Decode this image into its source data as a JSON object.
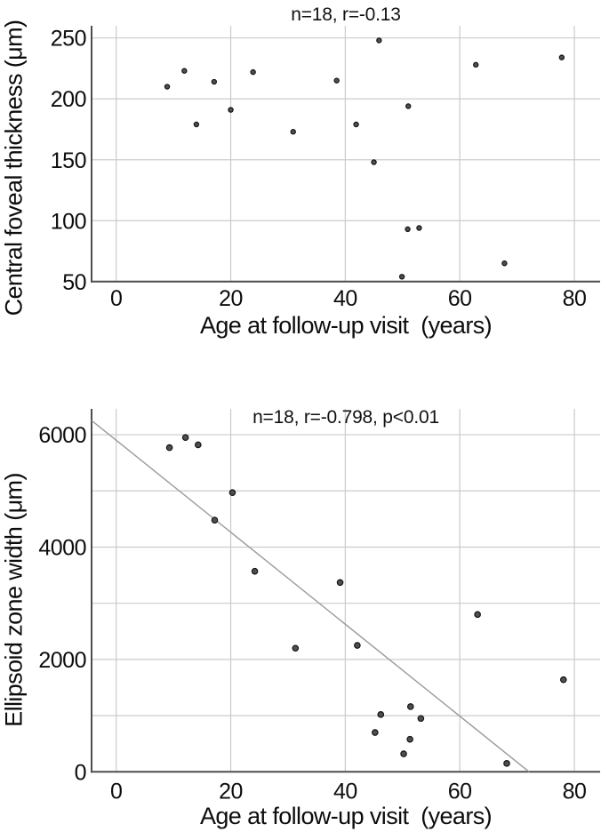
{
  "colors": {
    "background": "#ffffff",
    "grid": "#cbcbcb",
    "axis": "#4d4d4d",
    "marker_fill": "#4f4f4f",
    "marker_stroke": "#141414",
    "trend": "#9a9a9a",
    "text": "#0d0d0d"
  },
  "chart_data": [
    {
      "type": "scatter",
      "title": "n=18, r=-0.13",
      "xlabel": "Age at follow-up visit  (years)",
      "ylabel": "Central foveal thickness (μm)",
      "xlim": [
        -4.3,
        84.5
      ],
      "ylim": [
        50,
        260
      ],
      "xticks": [
        0,
        20,
        40,
        60,
        80
      ],
      "yticks": [
        50,
        100,
        150,
        200,
        250
      ],
      "ygrid": [
        100,
        150,
        200,
        250
      ],
      "grid": true,
      "legend": "none",
      "points": [
        [
          8.9,
          210
        ],
        [
          11.9,
          223
        ],
        [
          14.0,
          179
        ],
        [
          17.1,
          214
        ],
        [
          20.0,
          191
        ],
        [
          23.9,
          222
        ],
        [
          30.9,
          173
        ],
        [
          38.5,
          215
        ],
        [
          41.9,
          179
        ],
        [
          45.0,
          148
        ],
        [
          45.9,
          248
        ],
        [
          49.9,
          54
        ],
        [
          50.9,
          93
        ],
        [
          51.0,
          194
        ],
        [
          52.9,
          94
        ],
        [
          62.8,
          228
        ],
        [
          67.8,
          65
        ],
        [
          77.8,
          234
        ]
      ]
    },
    {
      "type": "scatter",
      "title": "n=18, r=-0.798, p<0.01",
      "xlabel": "Age at follow-up visit  (years)",
      "ylabel": "Ellipsoid zone width (μm)",
      "xlim": [
        -4.3,
        84.5
      ],
      "ylim": [
        0,
        6460
      ],
      "xticks": [
        0,
        20,
        40,
        60,
        80
      ],
      "yticks": [
        0,
        2000,
        4000,
        6000
      ],
      "ygrid": [
        1000,
        2000,
        3000,
        4000,
        5000,
        6000
      ],
      "grid": true,
      "legend": "none",
      "points": [
        [
          9.3,
          5770
        ],
        [
          12.1,
          5950
        ],
        [
          14.3,
          5820
        ],
        [
          17.2,
          4480
        ],
        [
          20.3,
          4970
        ],
        [
          24.2,
          3570
        ],
        [
          31.3,
          2200
        ],
        [
          39.1,
          3370
        ],
        [
          42.1,
          2250
        ],
        [
          45.2,
          700
        ],
        [
          46.2,
          1020
        ],
        [
          50.2,
          320
        ],
        [
          51.3,
          580
        ],
        [
          51.4,
          1160
        ],
        [
          53.2,
          950
        ],
        [
          63.1,
          2800
        ],
        [
          68.2,
          150
        ],
        [
          78.1,
          1640
        ]
      ],
      "trendline": {
        "x1": -4.3,
        "y1": 6254,
        "x2": 72.1,
        "y2": 0
      }
    }
  ]
}
